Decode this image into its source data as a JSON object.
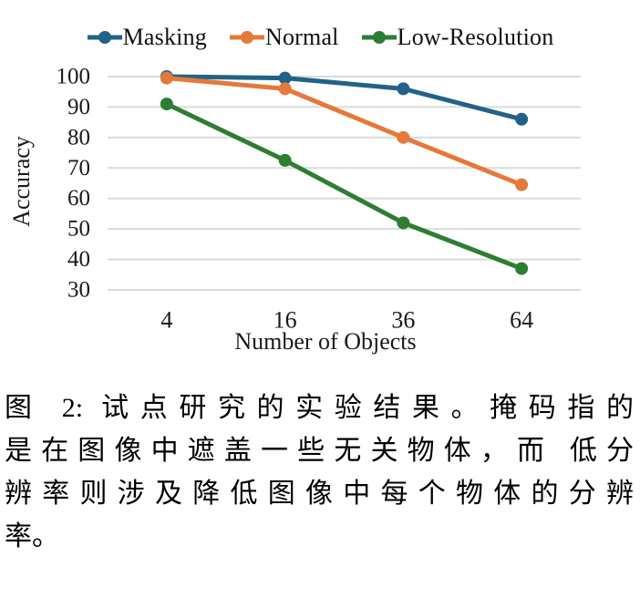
{
  "chart_data": {
    "type": "line",
    "title": "",
    "x_categories": [
      "4",
      "16",
      "36",
      "64"
    ],
    "series": [
      {
        "name": "Masking",
        "color": "#226289",
        "values": [
          100,
          99.5,
          96,
          86
        ]
      },
      {
        "name": "Normal",
        "color": "#E5793A",
        "values": [
          99.5,
          96,
          80,
          64.5
        ]
      },
      {
        "name": "Low-Resolution",
        "color": "#2E7D32",
        "values": [
          91,
          72.5,
          52,
          37
        ]
      }
    ],
    "xlabel": "Number of Objects",
    "ylabel": "Accuracy",
    "ylim": [
      30,
      100
    ],
    "yticks": [
      30,
      40,
      50,
      60,
      70,
      80,
      90,
      100
    ],
    "grid": "horizontal",
    "gridline_color": "#DBDBDB",
    "tick_text_color": "#1a1a1a",
    "legend_position": "top"
  },
  "caption": {
    "lines": [
      "图 2: 试点研究的实验结果。掩码指的",
      "是在图像中遮盖一些无关物体，而 低分",
      "辨率则涉及降低图像中每个物体的分辨",
      "率。"
    ]
  }
}
